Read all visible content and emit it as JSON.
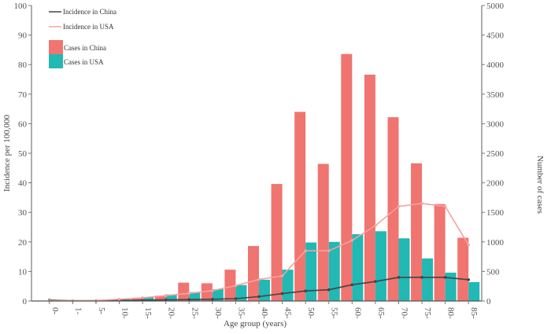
{
  "chart_data": {
    "type": "bar",
    "title": "",
    "xlabel": "Age group (years)",
    "ylabel": "Incidence per 100,000",
    "ylabel_right": "Number of cases",
    "ylim": [
      0,
      100
    ],
    "ylim_right": [
      0,
      5000
    ],
    "yticks": [
      0,
      10,
      20,
      30,
      40,
      50,
      60,
      70,
      80,
      90,
      100
    ],
    "yticks_right": [
      0,
      500,
      1000,
      1500,
      2000,
      2500,
      3000,
      3500,
      4000,
      4500,
      5000
    ],
    "grid": false,
    "legend_position": "top-left",
    "categories": [
      "0-",
      "1-",
      "5-",
      "10-",
      "15-",
      "20-",
      "25-",
      "30-",
      "35-",
      "40-",
      "45-",
      "50-",
      "55-",
      "60-",
      "65-",
      "70-",
      "75-",
      "80-",
      "85-"
    ],
    "series": [
      {
        "name": "Cases in China",
        "type": "bar",
        "axis": "right",
        "color": "#F07470",
        "values": [
          0,
          0,
          0,
          10,
          50,
          90,
          310,
          300,
          530,
          930,
          1980,
          3200,
          2320,
          4180,
          3830,
          3110,
          2330,
          1640,
          1070
        ]
      },
      {
        "name": "Cases in USA",
        "type": "bar",
        "axis": "right",
        "color": "#22B8B4",
        "values": [
          0,
          0,
          0,
          30,
          60,
          110,
          150,
          200,
          270,
          360,
          530,
          990,
          1000,
          1130,
          1180,
          1060,
          720,
          480,
          320
        ]
      },
      {
        "name": "Incidence in China",
        "type": "line",
        "axis": "left",
        "color": "#444444",
        "values": [
          0.3,
          0.1,
          0.1,
          0.2,
          0.3,
          0.4,
          0.5,
          0.6,
          0.8,
          1.5,
          2.5,
          3.4,
          3.8,
          5.5,
          6.6,
          8.0,
          8.0,
          8.0,
          7.2
        ]
      },
      {
        "name": "Incidence in USA",
        "type": "line",
        "axis": "left",
        "color": "#F5A3A0",
        "values": [
          0.1,
          0.1,
          0.2,
          0.6,
          1.1,
          1.8,
          2.6,
          3.5,
          5.2,
          7.3,
          8.5,
          17,
          17,
          20.5,
          25.5,
          32,
          33,
          32,
          19
        ]
      }
    ]
  },
  "legend": {
    "items": [
      {
        "label": "Incidence in China"
      },
      {
        "label": "Incidence in USA"
      },
      {
        "label": "Cases in China"
      },
      {
        "label": "Cases in USA"
      }
    ]
  }
}
